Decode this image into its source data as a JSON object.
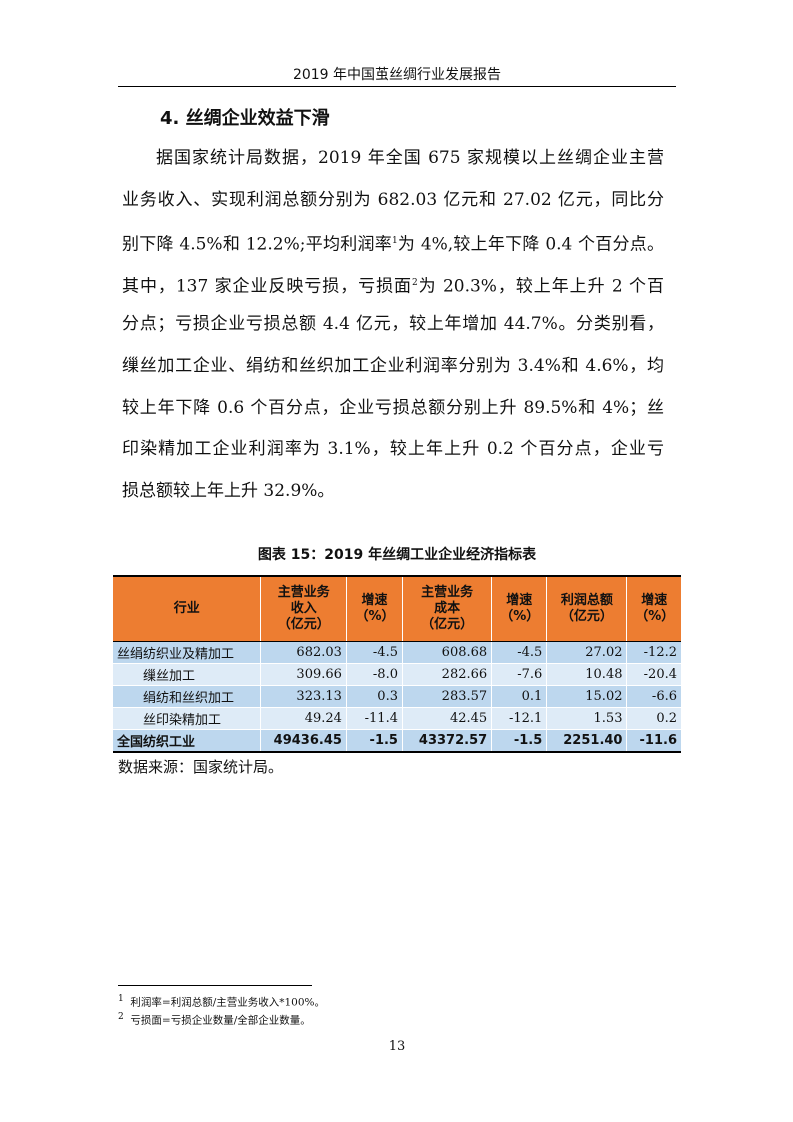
{
  "header": "2019 年中国茧丝绸行业发展报告",
  "section_title": "4. 丝绸企业效益下滑",
  "body_lines": [
    "据国家统计局数据，2019 年全国 675 家规模以上丝绸企业主营",
    "业务收入、实现利润总额分别为 682.03 亿元和 27.02 亿元，同比分",
    [
      "别下降 4.5%和 12.2%;平均利润率",
      "1",
      "为 4%,较上年下降 0.4 个百分点。"
    ],
    [
      "其中，137 家企业反映亏损，亏损面",
      "2",
      "为 20.3%，较上年上升 2 个百"
    ],
    "分点；亏损企业亏损总额 4.4 亿元，较上年增加 44.7%。分类别看，",
    "缫丝加工企业、绢纺和丝织加工企业利润率分别为 3.4%和 4.6%，均",
    "较上年下降 0.6 个百分点，企业亏损总额分别上升 89.5%和 4%；丝",
    "印染精加工企业利润率为 3.1%，较上年上升 0.2 个百分点，企业亏",
    "损总额较上年上升 32.9%。"
  ],
  "table": {
    "caption": "图表 15：2019 年丝绸工业企业经济指标表",
    "columns": [
      "行业",
      "主营业务收入（亿元）",
      "增速（%）",
      "主营业务成本（亿元）",
      "增速（%）",
      "利润总额（亿元）",
      "增速（%）"
    ],
    "column_lines": [
      [
        "行业"
      ],
      [
        "主营业务",
        "收入",
        "（亿元）"
      ],
      [
        "增速",
        "（%）"
      ],
      [
        "主营业务",
        "成本",
        "（亿元）"
      ],
      [
        "增速",
        "（%）"
      ],
      [
        "利润总额",
        "（亿元）"
      ],
      [
        "增速",
        "（%）"
      ]
    ],
    "rows": [
      [
        "丝绢纺织业及精加工",
        "682.03",
        "-4.5",
        "608.68",
        "-4.5",
        "27.02",
        "-12.2"
      ],
      [
        "缫丝加工",
        "309.66",
        "-8.0",
        "282.66",
        "-7.6",
        "10.48",
        "-20.4"
      ],
      [
        "绢纺和丝织加工",
        "323.13",
        "0.3",
        "283.57",
        "0.1",
        "15.02",
        "-6.6"
      ],
      [
        "丝印染精加工",
        "49.24",
        "-11.4",
        "42.45",
        "-12.1",
        "1.53",
        "0.2"
      ],
      [
        "全国纺织工业",
        "49436.45",
        "-1.5",
        "43372.57",
        "-1.5",
        "2251.40",
        "-11.6"
      ]
    ],
    "colors": {
      "header": "#ED7D31",
      "row_dark": "#BDD7EE",
      "row_light": "#DEEBF7"
    }
  },
  "source": "数据来源：国家统计局。",
  "footnotes": [
    {
      "mark": "1",
      "text": "利润率=利润总额/主营业务收入*100%。"
    },
    {
      "mark": "2",
      "text": "亏损面=亏损企业数量/全部企业数量。"
    }
  ],
  "page_number": "13"
}
